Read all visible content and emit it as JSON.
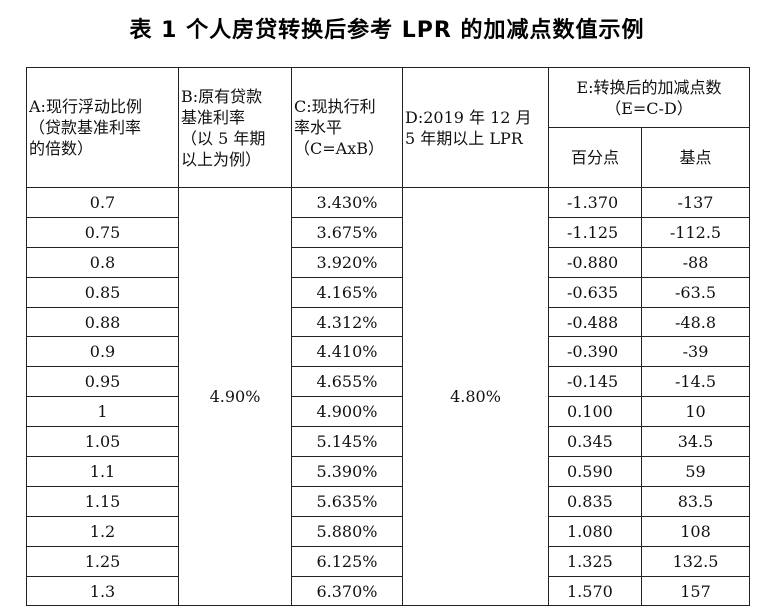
{
  "title": "表 1  个人房贷转换后参考 LPR 的加减点数值示例",
  "headers": {
    "a": "A:现行浮动比例\n（贷款基准利率\n的倍数）",
    "b": "B:原有贷款\n基准利率\n（以 5 年期\n以上为例）",
    "c": "C:现执行利\n率水平\n（C=AxB）",
    "d": "D:2019 年 12 月\n5 年期以上 LPR",
    "e": "E:转换后的加减点数\n（E=C-D）",
    "e_percent": "百分点",
    "e_bp": "基点"
  },
  "base_rate": "4.90%",
  "lpr": "4.80%",
  "rows": [
    {
      "a": "0.7",
      "c": "3.430%",
      "pct": "-1.370",
      "bp": "-137"
    },
    {
      "a": "0.75",
      "c": "3.675%",
      "pct": "-1.125",
      "bp": "-112.5"
    },
    {
      "a": "0.8",
      "c": "3.920%",
      "pct": "-0.880",
      "bp": "-88"
    },
    {
      "a": "0.85",
      "c": "4.165%",
      "pct": "-0.635",
      "bp": "-63.5"
    },
    {
      "a": "0.88",
      "c": "4.312%",
      "pct": "-0.488",
      "bp": "-48.8"
    },
    {
      "a": "0.9",
      "c": "4.410%",
      "pct": "-0.390",
      "bp": "-39"
    },
    {
      "a": "0.95",
      "c": "4.655%",
      "pct": "-0.145",
      "bp": "-14.5"
    },
    {
      "a": "1",
      "c": "4.900%",
      "pct": "0.100",
      "bp": "10"
    },
    {
      "a": "1.05",
      "c": "5.145%",
      "pct": "0.345",
      "bp": "34.5"
    },
    {
      "a": "1.1",
      "c": "5.390%",
      "pct": "0.590",
      "bp": "59"
    },
    {
      "a": "1.15",
      "c": "5.635%",
      "pct": "0.835",
      "bp": "83.5"
    },
    {
      "a": "1.2",
      "c": "5.880%",
      "pct": "1.080",
      "bp": "108"
    },
    {
      "a": "1.25",
      "c": "6.125%",
      "pct": "1.325",
      "bp": "132.5"
    },
    {
      "a": "1.3",
      "c": "6.370%",
      "pct": "1.570",
      "bp": "157"
    }
  ]
}
